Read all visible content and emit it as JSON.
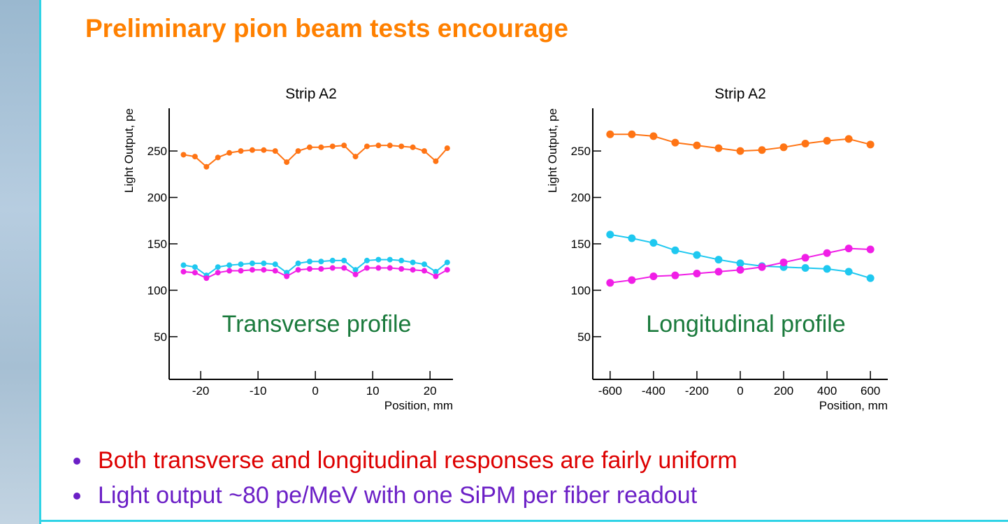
{
  "slide": {
    "title": "Preliminary pion beam tests encourage",
    "bullets": [
      "Both transverse and longitudinal responses are fairly uniform",
      "Light output ~80 pe/MeV with one SiPM per fiber readout"
    ]
  },
  "chart_data": [
    {
      "type": "line",
      "title": "Strip A2",
      "x_label": "Position, mm",
      "y_label": "Light Output, pe",
      "annotation": "Transverse profile",
      "x": [
        -23,
        -21,
        -19,
        -17,
        -15,
        -13,
        -11,
        -9,
        -7,
        -5,
        -3,
        -1,
        1,
        3,
        5,
        7,
        9,
        11,
        13,
        15,
        17,
        19,
        21,
        23
      ],
      "series": [
        {
          "color": "#ff7414",
          "values": [
            246,
            244,
            233,
            243,
            248,
            250,
            251,
            251,
            250,
            238,
            250,
            254,
            254,
            255,
            256,
            244,
            255,
            256,
            256,
            255,
            254,
            250,
            239,
            253
          ]
        },
        {
          "color": "#1ec8f0",
          "values": [
            127,
            125,
            116,
            125,
            127,
            128,
            129,
            129,
            128,
            119,
            129,
            131,
            131,
            132,
            132,
            122,
            132,
            133,
            133,
            132,
            130,
            128,
            120,
            130
          ]
        },
        {
          "color": "#f01ee6",
          "values": [
            120,
            119,
            113,
            119,
            121,
            121,
            122,
            122,
            121,
            115,
            122,
            123,
            123,
            124,
            124,
            117,
            124,
            124,
            124,
            123,
            122,
            121,
            115,
            122
          ]
        }
      ],
      "xlim": [
        -25.5,
        24
      ],
      "ylim": [
        4,
        296
      ],
      "xticks": [
        -20,
        -10,
        0,
        10,
        20
      ],
      "yticks": [
        50,
        100,
        150,
        200,
        250
      ],
      "marker_size": 4
    },
    {
      "type": "line",
      "title": "Strip A2",
      "x_label": "Position, mm",
      "y_label": "Light Output, pe",
      "annotation": "Longitudinal profile",
      "x": [
        -600,
        -500,
        -400,
        -300,
        -200,
        -100,
        0,
        100,
        200,
        300,
        400,
        500,
        600
      ],
      "series": [
        {
          "color": "#ff7414",
          "values": [
            268,
            268,
            266,
            259,
            256,
            253,
            250,
            251,
            254,
            258,
            261,
            263,
            257
          ]
        },
        {
          "color": "#1ec8f0",
          "values": [
            160,
            156,
            151,
            143,
            138,
            133,
            129,
            126,
            125,
            124,
            123,
            120,
            113
          ]
        },
        {
          "color": "#f01ee6",
          "values": [
            108,
            111,
            115,
            116,
            118,
            120,
            122,
            125,
            130,
            135,
            140,
            145,
            144
          ]
        }
      ],
      "xlim": [
        -680,
        680
      ],
      "ylim": [
        4,
        296
      ],
      "xticks": [
        -600,
        -400,
        -200,
        0,
        200,
        400,
        600
      ],
      "yticks": [
        50,
        100,
        150,
        200,
        250
      ],
      "marker_size": 5.5
    }
  ]
}
